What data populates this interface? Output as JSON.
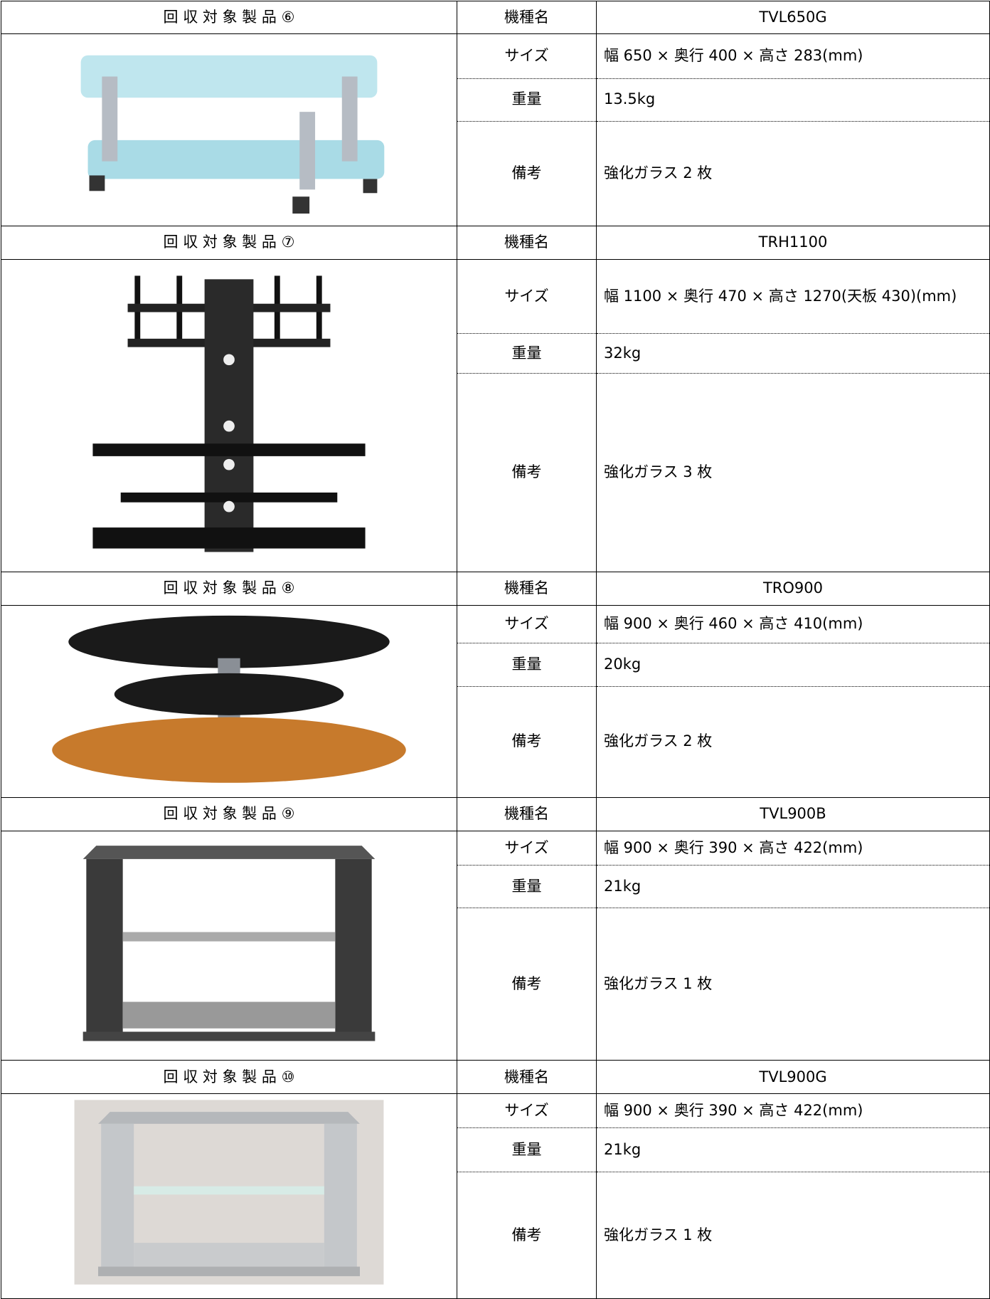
{
  "products": [
    {
      "title": "回 収 対 象 製 品 ⑥",
      "rows": [
        {
          "label": "機種名",
          "value": "TVL650G"
        },
        {
          "label": "サイズ",
          "value": "幅 650 × 奥行 400 × 高さ 283(mm)"
        },
        {
          "label": "重量",
          "value": "13.5kg"
        },
        {
          "label": "備考",
          "value": "強化ガラス 2 枚"
        }
      ]
    },
    {
      "title": "回 収 対 象 製 品 ⑦",
      "rows": [
        {
          "label": "機種名",
          "value": "TRH1100"
        },
        {
          "label": "サイズ",
          "value": "幅 1100 × 奥行 470 × 高さ 1270(天板 430)(mm)"
        },
        {
          "label": "重量",
          "value": "32kg"
        },
        {
          "label": "備考",
          "value": "強化ガラス 3 枚"
        }
      ]
    },
    {
      "title": "回 収 対 象 製 品 ⑧",
      "rows": [
        {
          "label": "機種名",
          "value": "TRO900"
        },
        {
          "label": "サイズ",
          "value": "幅 900 × 奥行 460 × 高さ 410(mm)"
        },
        {
          "label": "重量",
          "value": "20kg"
        },
        {
          "label": "備考",
          "value": "強化ガラス 2 枚"
        }
      ]
    },
    {
      "title": "回 収 対 象 製 品 ⑨",
      "rows": [
        {
          "label": "機種名",
          "value": "TVL900B"
        },
        {
          "label": "サイズ",
          "value": "幅 900 × 奥行 390 × 高さ 422(mm)"
        },
        {
          "label": "重量",
          "value": "21kg"
        },
        {
          "label": "備考",
          "value": "強化ガラス 1 枚"
        }
      ]
    },
    {
      "title": "回 収 対 象 製 品 ⑩",
      "rows": [
        {
          "label": "機種名",
          "value": "TVL900G"
        },
        {
          "label": "サイズ",
          "value": "幅 900 × 奥行 390 × 高さ 422(mm)"
        },
        {
          "label": "重量",
          "value": "21kg"
        },
        {
          "label": "備考",
          "value": "強化ガラス 1 枚"
        }
      ]
    }
  ]
}
